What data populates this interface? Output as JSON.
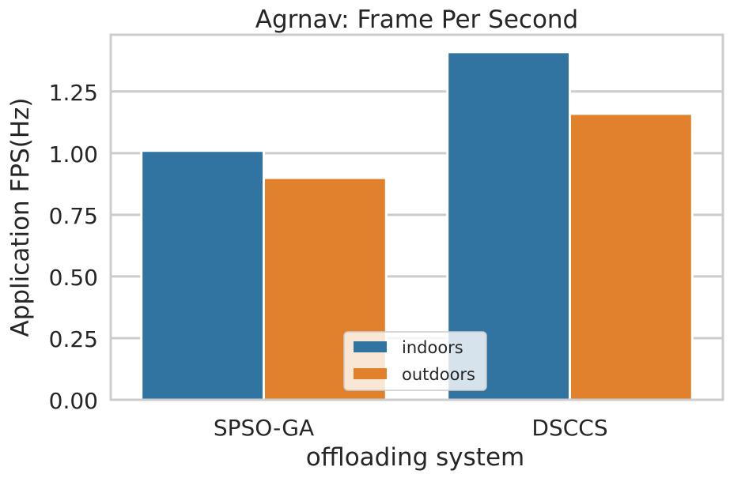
{
  "chart_data": {
    "type": "bar",
    "title": "Agrnav: Frame Per Second",
    "xlabel": "offloading system",
    "ylabel": "Application FPS(Hz)",
    "categories": [
      "SPSO-GA",
      "DSCCS"
    ],
    "series": [
      {
        "name": "indoors",
        "values": [
          1.01,
          1.41
        ],
        "color": "#3274a1"
      },
      {
        "name": "outdoors",
        "values": [
          0.9,
          1.16
        ],
        "color": "#e1812c"
      }
    ],
    "ylim": [
      0,
      1.48
    ],
    "yticks": [
      "0.00",
      "0.25",
      "0.50",
      "0.75",
      "1.00",
      "1.25"
    ],
    "grid": true,
    "legend_position": "bottom-center"
  }
}
